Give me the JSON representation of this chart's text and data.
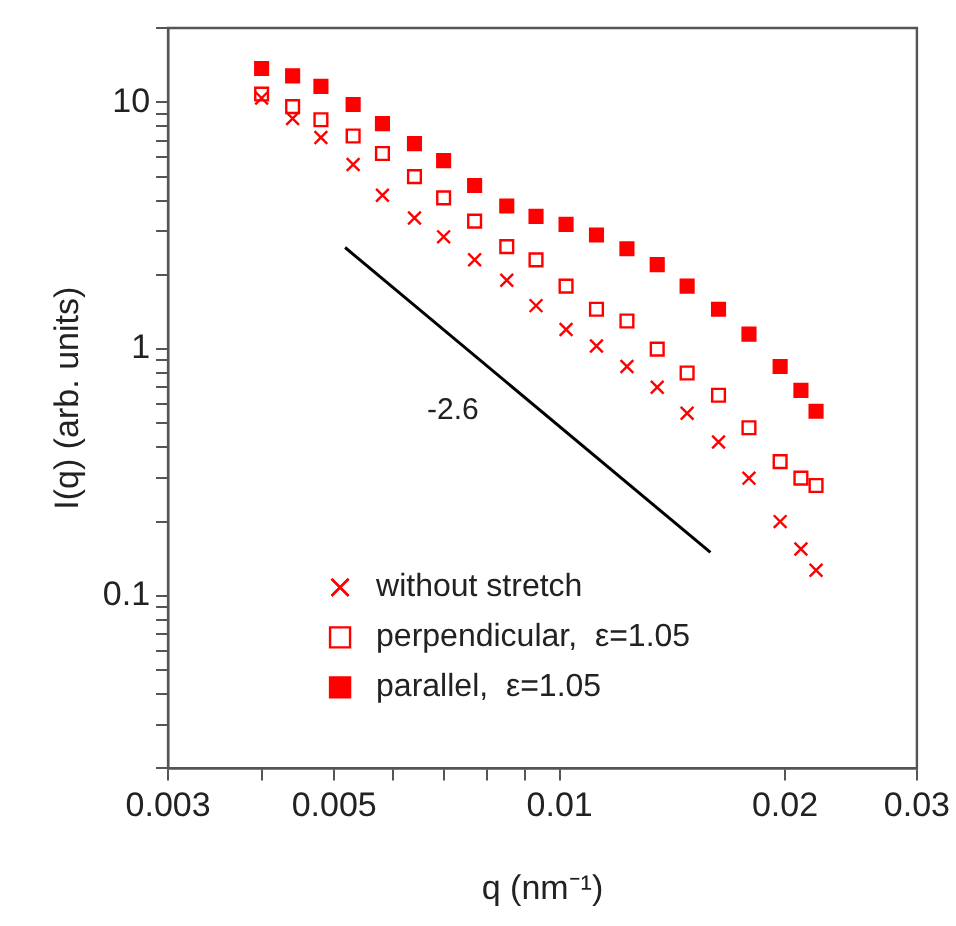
{
  "chart_data": {
    "type": "scatter",
    "xlabel": "q (nm⁻¹)",
    "ylabel": "I(q) (arb. units)",
    "log": "xy",
    "grid": false,
    "legend": "bottom left",
    "xlim": [
      0.003,
      0.03
    ],
    "ylim": [
      0.02,
      20
    ],
    "xticks": [
      0.003,
      {
        "value": 0.004,
        "label": null
      },
      0.005,
      {
        "value": 0.006,
        "label": null
      },
      {
        "value": 0.007,
        "label": null
      },
      {
        "value": 0.008,
        "label": null
      },
      {
        "value": 0.009,
        "label": null
      },
      0.01,
      0.02,
      0.03
    ],
    "yticks": [
      {
        "value": 0.02,
        "label": null
      },
      {
        "value": 0.03,
        "label": null
      },
      {
        "value": 0.04,
        "label": null
      },
      {
        "value": 0.05,
        "label": null
      },
      {
        "value": 0.06,
        "label": null
      },
      {
        "value": 0.07,
        "label": null
      },
      {
        "value": 0.08,
        "label": null
      },
      {
        "value": 0.09,
        "label": null
      },
      0.1,
      {
        "value": 0.2,
        "label": null
      },
      {
        "value": 0.3,
        "label": null
      },
      {
        "value": 0.4,
        "label": null
      },
      {
        "value": 0.5,
        "label": null
      },
      {
        "value": 0.6,
        "label": null
      },
      {
        "value": 0.7,
        "label": null
      },
      {
        "value": 0.8,
        "label": null
      },
      {
        "value": 0.9,
        "label": null
      },
      1,
      {
        "value": 2,
        "label": null
      },
      {
        "value": 3,
        "label": null
      },
      {
        "value": 4,
        "label": null
      },
      {
        "value": 5,
        "label": null
      },
      {
        "value": 6,
        "label": null
      },
      {
        "value": 7,
        "label": null
      },
      {
        "value": 8,
        "label": null
      },
      {
        "value": 9,
        "label": null
      },
      10,
      {
        "value": 20,
        "label": null
      }
    ],
    "x": [
      0.004,
      0.0044,
      0.0048,
      0.0053,
      0.0058,
      0.0064,
      0.007,
      0.0077,
      0.0085,
      0.0093,
      0.0102,
      0.0112,
      0.0123,
      0.0135,
      0.0148,
      0.0163,
      0.0179,
      0.0197,
      0.021,
      0.022
    ],
    "series": [
      {
        "name": "without stretch",
        "color": "#ff0000",
        "marker": "cross",
        "values": [
          10.4,
          8.6,
          7.2,
          5.6,
          4.2,
          3.4,
          2.85,
          2.3,
          1.9,
          1.5,
          1.2,
          1.03,
          0.85,
          0.7,
          0.55,
          0.42,
          0.3,
          0.2,
          0.155,
          0.127
        ]
      },
      {
        "name": "perpendicular,  ε=1.05",
        "color": "#ff0000",
        "marker": "square-open",
        "values": [
          10.8,
          9.6,
          8.5,
          7.3,
          6.2,
          5.0,
          4.1,
          3.3,
          2.6,
          2.3,
          1.8,
          1.45,
          1.3,
          1.0,
          0.8,
          0.65,
          0.48,
          0.35,
          0.3,
          0.28
        ]
      },
      {
        "name": "parallel,  ε=1.05",
        "color": "#ff0000",
        "marker": "square",
        "values": [
          13.7,
          12.8,
          11.6,
          9.8,
          8.2,
          6.8,
          5.8,
          4.6,
          3.8,
          3.45,
          3.2,
          2.9,
          2.55,
          2.2,
          1.8,
          1.45,
          1.15,
          0.85,
          0.68,
          0.56
        ]
      },
      {
        "type": "line",
        "color": "#000000",
        "marker": "none",
        "x": [
          0.00517,
          0.0159
        ],
        "values": [
          2.58,
          0.15
        ]
      }
    ],
    "annotations": [
      "-2.6"
    ]
  }
}
